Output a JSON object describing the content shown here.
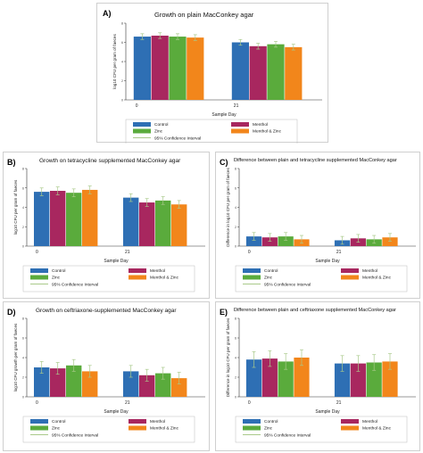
{
  "chart_data": [
    {
      "panel": "A)",
      "type": "bar",
      "title": "Growth on plain MacConkey agar",
      "xlabel": "Sample Day",
      "ylabel": "log10 CFU per gram of faeces",
      "categories": [
        "0",
        "21"
      ],
      "series": [
        {
          "name": "Control",
          "values": [
            6.6,
            6.0
          ],
          "ci": [
            [
              6.3,
              6.9
            ],
            [
              5.7,
              6.3
            ]
          ]
        },
        {
          "name": "Menthol",
          "values": [
            6.7,
            5.6
          ],
          "ci": [
            [
              6.4,
              7.0
            ],
            [
              5.3,
              5.9
            ]
          ]
        },
        {
          "name": "Zinc",
          "values": [
            6.6,
            5.8
          ],
          "ci": [
            [
              6.3,
              6.9
            ],
            [
              5.5,
              6.1
            ]
          ]
        },
        {
          "name": "Menthol & Zinc",
          "values": [
            6.5,
            5.5
          ],
          "ci": [
            [
              6.2,
              6.8
            ],
            [
              5.2,
              5.8
            ]
          ]
        }
      ],
      "ylim": [
        0,
        8
      ],
      "yticks": [
        "0",
        "2",
        "4",
        "6",
        "8"
      ]
    },
    {
      "panel": "B)",
      "type": "bar",
      "title": "Growth on tetracycline supplemented MacConkey agar",
      "xlabel": "Sample Day",
      "ylabel": "log10 CFU per gram of faeces",
      "categories": [
        "0",
        "21"
      ],
      "series": [
        {
          "name": "Control",
          "values": [
            5.6,
            5.0
          ],
          "ci": [
            [
              5.2,
              6.0
            ],
            [
              4.6,
              5.4
            ]
          ]
        },
        {
          "name": "Menthol",
          "values": [
            5.7,
            4.5
          ],
          "ci": [
            [
              5.3,
              6.1
            ],
            [
              4.1,
              4.9
            ]
          ]
        },
        {
          "name": "Zinc",
          "values": [
            5.5,
            4.7
          ],
          "ci": [
            [
              5.1,
              5.9
            ],
            [
              4.3,
              5.1
            ]
          ]
        },
        {
          "name": "Menthol & Zinc",
          "values": [
            5.8,
            4.3
          ],
          "ci": [
            [
              5.4,
              6.2
            ],
            [
              3.9,
              4.7
            ]
          ]
        }
      ],
      "ylim": [
        0,
        8
      ],
      "yticks": [
        "0",
        "2",
        "4",
        "6",
        "8"
      ]
    },
    {
      "panel": "C)",
      "type": "bar",
      "title": "Difference between plain and tetracycline supplemented MacConkey agar",
      "xlabel": "Sample Day",
      "ylabel": "Difference in log10 CFU per gram of faeces",
      "categories": [
        "0",
        "21"
      ],
      "series": [
        {
          "name": "Control",
          "values": [
            1.0,
            0.6
          ],
          "ci": [
            [
              0.6,
              1.4
            ],
            [
              0.2,
              1.0
            ]
          ]
        },
        {
          "name": "Menthol",
          "values": [
            0.9,
            0.8
          ],
          "ci": [
            [
              0.5,
              1.3
            ],
            [
              0.4,
              1.2
            ]
          ]
        },
        {
          "name": "Zinc",
          "values": [
            1.0,
            0.7
          ],
          "ci": [
            [
              0.6,
              1.4
            ],
            [
              0.3,
              1.1
            ]
          ]
        },
        {
          "name": "Menthol & Zinc",
          "values": [
            0.7,
            0.9
          ],
          "ci": [
            [
              0.3,
              1.1
            ],
            [
              0.5,
              1.3
            ]
          ]
        }
      ],
      "ylim": [
        0,
        8
      ],
      "yticks": [
        "0",
        "2",
        "4",
        "6",
        "8"
      ]
    },
    {
      "panel": "D)",
      "type": "bar",
      "title": "Growth on ceftriaxone-supplemented MacConkey agar",
      "xlabel": "Sample Day",
      "ylabel": "log10 CFU growth per gram of faeces",
      "categories": [
        "0",
        "21"
      ],
      "series": [
        {
          "name": "Control",
          "values": [
            3.0,
            2.6
          ],
          "ci": [
            [
              2.4,
              3.6
            ],
            [
              2.0,
              3.2
            ]
          ]
        },
        {
          "name": "Menthol",
          "values": [
            2.9,
            2.2
          ],
          "ci": [
            [
              2.3,
              3.5
            ],
            [
              1.6,
              2.8
            ]
          ]
        },
        {
          "name": "Zinc",
          "values": [
            3.2,
            2.4
          ],
          "ci": [
            [
              2.6,
              3.8
            ],
            [
              1.8,
              3.0
            ]
          ]
        },
        {
          "name": "Menthol & Zinc",
          "values": [
            2.6,
            1.9
          ],
          "ci": [
            [
              2.0,
              3.2
            ],
            [
              1.3,
              2.5
            ]
          ]
        }
      ],
      "ylim": [
        0,
        8
      ],
      "yticks": [
        "0",
        "2",
        "4",
        "6",
        "8"
      ]
    },
    {
      "panel": "E)",
      "type": "bar",
      "title": "Difference between plain and ceftriaxone supplemented MacConkey agar",
      "xlabel": "Sample Day",
      "ylabel": "Difference in log10 CFU per gram of faeces",
      "categories": [
        "0",
        "21"
      ],
      "series": [
        {
          "name": "Control",
          "values": [
            3.8,
            3.4
          ],
          "ci": [
            [
              3.0,
              4.6
            ],
            [
              2.6,
              4.2
            ]
          ]
        },
        {
          "name": "Menthol",
          "values": [
            3.9,
            3.4
          ],
          "ci": [
            [
              3.1,
              4.7
            ],
            [
              2.6,
              4.2
            ]
          ]
        },
        {
          "name": "Zinc",
          "values": [
            3.6,
            3.5
          ],
          "ci": [
            [
              2.8,
              4.4
            ],
            [
              2.7,
              4.3
            ]
          ]
        },
        {
          "name": "Menthol & Zinc",
          "values": [
            4.0,
            3.6
          ],
          "ci": [
            [
              3.2,
              4.8
            ],
            [
              2.8,
              4.4
            ]
          ]
        }
      ],
      "ylim": [
        0,
        8
      ],
      "yticks": [
        "0",
        "2",
        "4",
        "6",
        "8"
      ]
    }
  ],
  "legend": {
    "items": [
      "Control",
      "Menthol",
      "Zinc",
      "Menthol & Zinc"
    ],
    "ci_label": "95% Confidence Interval"
  },
  "colors": {
    "Control": "#2e6fb4",
    "Menthol": "#a8275f",
    "Zinc": "#5aab3c",
    "Menthol & Zinc": "#f2861b",
    "ci": "#a9c98a"
  }
}
